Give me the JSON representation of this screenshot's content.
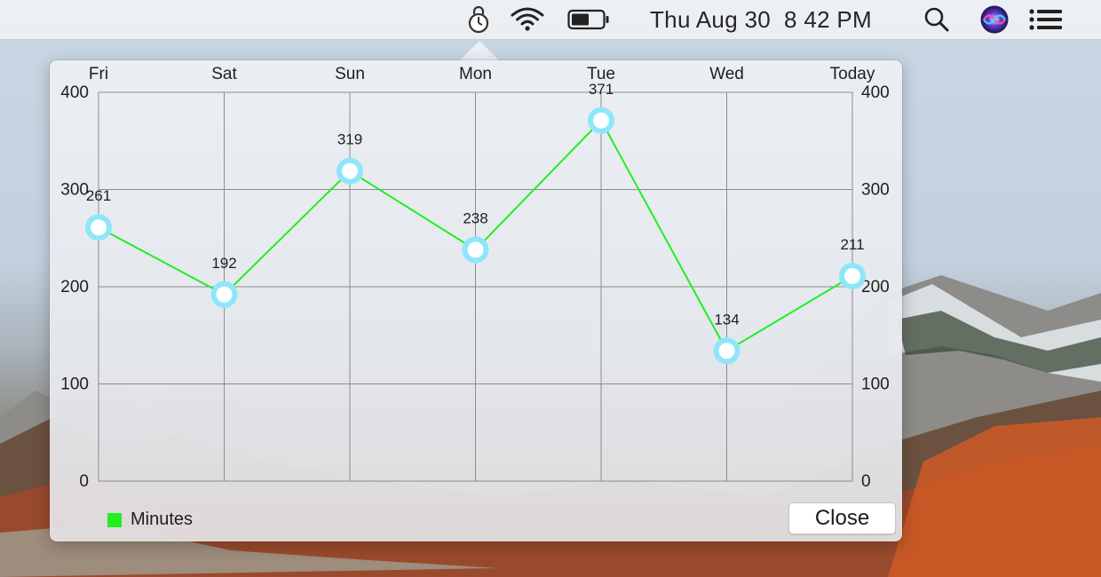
{
  "menubar": {
    "clock": "Thu Aug 30  8 42 PM",
    "icons": [
      "timer-lock-icon",
      "wifi-icon",
      "battery-icon",
      "search-icon",
      "siri-icon",
      "notification-center-icon"
    ]
  },
  "popover": {
    "close_label": "Close"
  },
  "chart_data": {
    "type": "line",
    "categories": [
      "Fri",
      "Sat",
      "Sun",
      "Mon",
      "Tue",
      "Wed",
      "Today"
    ],
    "series": [
      {
        "name": "Minutes",
        "values": [
          261,
          192,
          319,
          238,
          371,
          134,
          211
        ],
        "color": "#22ee22"
      }
    ],
    "data_labels": [
      "261",
      "192",
      "319",
      "238",
      "371",
      "134",
      "211"
    ],
    "y_ticks": [
      "0",
      "100",
      "200",
      "300",
      "400"
    ],
    "ylim": [
      0,
      400
    ],
    "grid": true,
    "legend": "bottom-left",
    "marker_color": "#8ee6fb",
    "title": "",
    "xlabel": "",
    "ylabel": ""
  }
}
